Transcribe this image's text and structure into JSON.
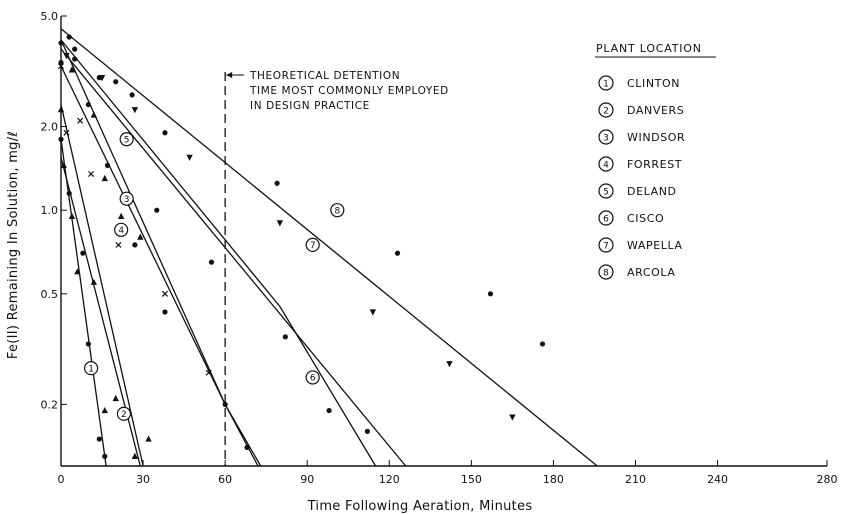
{
  "chart_data": {
    "type": "scatter",
    "xlabel": "Time Following Aeration, Minutes",
    "ylabel": "Fe(II) Remaining In Solution, mg/ℓ",
    "y_scale": "log",
    "xlim": [
      0,
      280
    ],
    "ylim": [
      0.12,
      5.0
    ],
    "x_ticks": [
      0,
      30,
      60,
      90,
      120,
      150,
      180,
      210,
      240,
      280
    ],
    "y_ticks": [
      {
        "value": 5.0,
        "label": "5.0"
      },
      {
        "value": 2.0,
        "label": "2.0"
      },
      {
        "value": 1.0,
        "label": "1.0"
      },
      {
        "value": 0.5,
        "label": "0.5"
      },
      {
        "value": 0.2,
        "label": "0.2"
      }
    ],
    "grid": false,
    "legend_title": "PLANT LOCATION",
    "legend_position": "top-right",
    "annotation": {
      "lines": [
        "THEORETICAL DETENTION",
        "TIME MOST COMMONLY EMPLOYED",
        "IN DESIGN PRACTICE"
      ],
      "x": 60
    },
    "series": [
      {
        "id": "1",
        "name": "CLINTON",
        "marker": "dot",
        "fit": [
          [
            0,
            1.8
          ],
          [
            16.5,
            0.12
          ]
        ],
        "label_at": [
          11,
          0.27
        ],
        "points": [
          [
            0,
            1.8
          ],
          [
            3,
            1.15
          ],
          [
            8,
            0.7
          ],
          [
            10,
            0.33
          ],
          [
            14,
            0.15
          ],
          [
            16,
            0.13
          ]
        ]
      },
      {
        "id": "2",
        "name": "DANVERS",
        "marker": "triangle",
        "fit": [
          [
            0,
            1.55
          ],
          [
            29,
            0.12
          ]
        ],
        "label_at": [
          23,
          0.185
        ],
        "points": [
          [
            1,
            1.45
          ],
          [
            4,
            0.95
          ],
          [
            6,
            0.6
          ],
          [
            12,
            0.55
          ],
          [
            16,
            0.19
          ],
          [
            20,
            0.21
          ],
          [
            27,
            0.13
          ]
        ]
      },
      {
        "id": "3",
        "name": "WINDSOR",
        "marker": "dot",
        "fit": [
          [
            0,
            4.1
          ],
          [
            60,
            0.2
          ],
          [
            72,
            0.12
          ]
        ],
        "label_at": [
          24,
          1.1
        ],
        "points": [
          [
            0,
            4.0
          ],
          [
            5,
            3.5
          ],
          [
            10,
            2.4
          ],
          [
            17,
            1.45
          ],
          [
            27,
            0.75
          ],
          [
            38,
            0.43
          ],
          [
            60,
            0.2
          ],
          [
            68,
            0.14
          ]
        ]
      },
      {
        "id": "4",
        "name": "FORREST",
        "marker": "triangle",
        "fit": [
          [
            0,
            2.4
          ],
          [
            30,
            0.12
          ]
        ],
        "label_at": [
          22,
          0.85
        ],
        "points": [
          [
            0,
            2.3
          ],
          [
            4,
            3.2
          ],
          [
            12,
            2.2
          ],
          [
            16,
            1.3
          ],
          [
            22,
            0.95
          ],
          [
            29,
            0.8
          ],
          [
            32,
            0.15
          ]
        ]
      },
      {
        "id": "5",
        "name": "DELAND",
        "marker": "x",
        "fit": [
          [
            0,
            3.3
          ],
          [
            60,
            0.2
          ],
          [
            73,
            0.12
          ]
        ],
        "label_at": [
          24,
          1.8
        ],
        "points": [
          [
            0,
            3.3
          ],
          [
            2,
            1.9
          ],
          [
            7,
            2.1
          ],
          [
            11,
            1.35
          ],
          [
            21,
            0.75
          ],
          [
            38,
            0.5
          ],
          [
            54,
            0.26
          ]
        ]
      },
      {
        "id": "6",
        "name": "CISCO",
        "marker": "dot",
        "fit": [
          [
            0,
            4.1
          ],
          [
            80,
            0.45
          ],
          [
            115,
            0.12
          ]
        ],
        "label_at": [
          92,
          0.25
        ],
        "points": [
          [
            0,
            3.4
          ],
          [
            5,
            3.8
          ],
          [
            20,
            2.9
          ],
          [
            35,
            1.0
          ],
          [
            55,
            0.65
          ],
          [
            82,
            0.35
          ],
          [
            98,
            0.19
          ],
          [
            112,
            0.16
          ]
        ]
      },
      {
        "id": "7",
        "name": "WAPELLA",
        "marker": "triangle-down",
        "fit": [
          [
            0,
            3.8
          ],
          [
            126,
            0.12
          ]
        ],
        "label_at": [
          92,
          0.75
        ],
        "points": [
          [
            2,
            3.6
          ],
          [
            15,
            3.0
          ],
          [
            27,
            2.3
          ],
          [
            47,
            1.55
          ],
          [
            80,
            0.9
          ],
          [
            114,
            0.43
          ],
          [
            142,
            0.28
          ],
          [
            165,
            0.18
          ]
        ]
      },
      {
        "id": "8",
        "name": "ARCOLA",
        "marker": "dot",
        "fit": [
          [
            0,
            4.5
          ],
          [
            196,
            0.12
          ]
        ],
        "label_at": [
          101,
          1.0
        ],
        "points": [
          [
            3,
            4.2
          ],
          [
            14,
            3.0
          ],
          [
            26,
            2.6
          ],
          [
            38,
            1.9
          ],
          [
            79,
            1.25
          ],
          [
            123,
            0.7
          ],
          [
            157,
            0.5
          ],
          [
            176,
            0.33
          ]
        ]
      }
    ]
  }
}
